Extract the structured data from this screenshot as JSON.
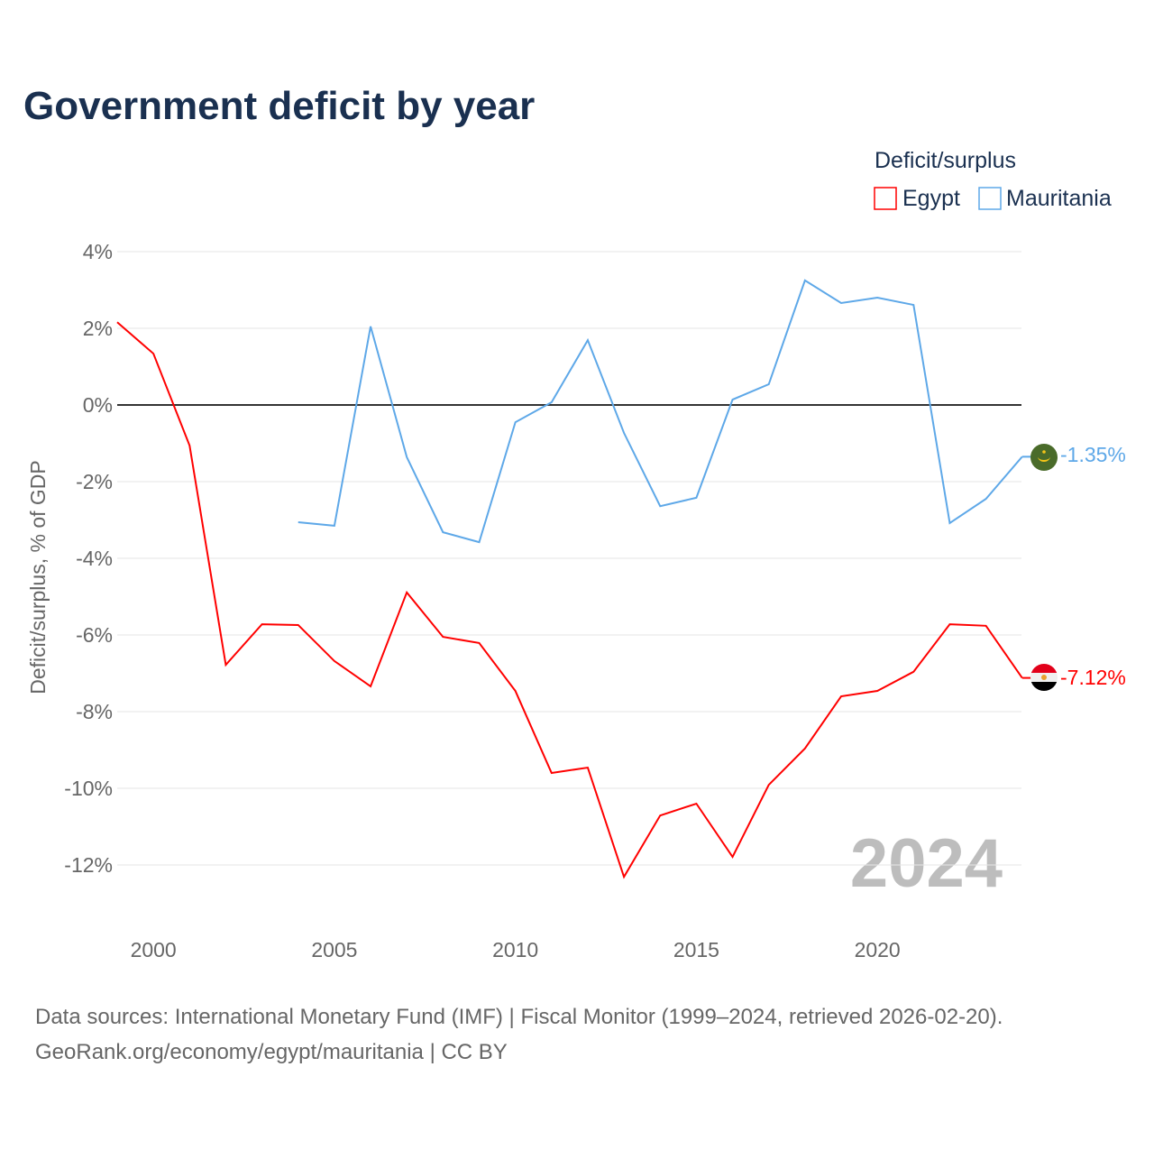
{
  "chart_data": {
    "type": "line",
    "title": "Government deficit by year",
    "ylabel": "Deficit/surplus, % of GDP",
    "xlabel": "",
    "ylim": [
      -13,
      4.5
    ],
    "xlim": [
      1999,
      2024
    ],
    "yticks": [
      4,
      2,
      0,
      -2,
      -4,
      -6,
      -8,
      -10,
      -12
    ],
    "ytick_labels": [
      "4%",
      "2%",
      "0%",
      "-2%",
      "-4%",
      "-6%",
      "-8%",
      "-10%",
      "-12%"
    ],
    "xticks": [
      2000,
      2005,
      2010,
      2015,
      2020
    ],
    "xtick_labels": [
      "2000",
      "2005",
      "2010",
      "2015",
      "2020"
    ],
    "legend_title": "Deficit/surplus",
    "legend_position": "top-right",
    "year_watermark": "2024",
    "grid": true,
    "series": [
      {
        "name": "Egypt",
        "color": "#ff0000",
        "end_label": "-7.12%",
        "x": [
          1999,
          2000,
          2001,
          2002,
          2003,
          2004,
          2005,
          2006,
          2007,
          2008,
          2009,
          2010,
          2011,
          2012,
          2013,
          2014,
          2015,
          2016,
          2017,
          2018,
          2019,
          2020,
          2021,
          2022,
          2023,
          2024
        ],
        "values": [
          2.16,
          1.34,
          -1.06,
          -6.78,
          -5.72,
          -5.74,
          -6.68,
          -7.34,
          -4.89,
          -6.05,
          -6.21,
          -7.46,
          -9.6,
          -9.46,
          -12.31,
          -10.71,
          -10.4,
          -11.79,
          -9.91,
          -8.96,
          -7.6,
          -7.46,
          -6.96,
          -5.72,
          -5.76,
          -7.12
        ]
      },
      {
        "name": "Mauritania",
        "color": "#5ea8e8",
        "end_label": "-1.35%",
        "x": [
          2004,
          2005,
          2006,
          2007,
          2008,
          2009,
          2010,
          2011,
          2012,
          2013,
          2014,
          2015,
          2016,
          2017,
          2018,
          2019,
          2020,
          2021,
          2022,
          2023,
          2024
        ],
        "values": [
          -3.06,
          -3.15,
          2.05,
          -1.36,
          -3.32,
          -3.58,
          -0.45,
          0.07,
          1.69,
          -0.73,
          -2.64,
          -2.42,
          0.14,
          0.54,
          3.25,
          2.66,
          2.8,
          2.61,
          -3.08,
          -2.45,
          -1.35
        ]
      }
    ]
  },
  "footer": {
    "source": "Data sources: International Monetary Fund (IMF) | Fiscal Monitor (1999–2024, retrieved 2026-02-20).",
    "credit": "GeoRank.org/economy/egypt/mauritania | CC BY"
  }
}
